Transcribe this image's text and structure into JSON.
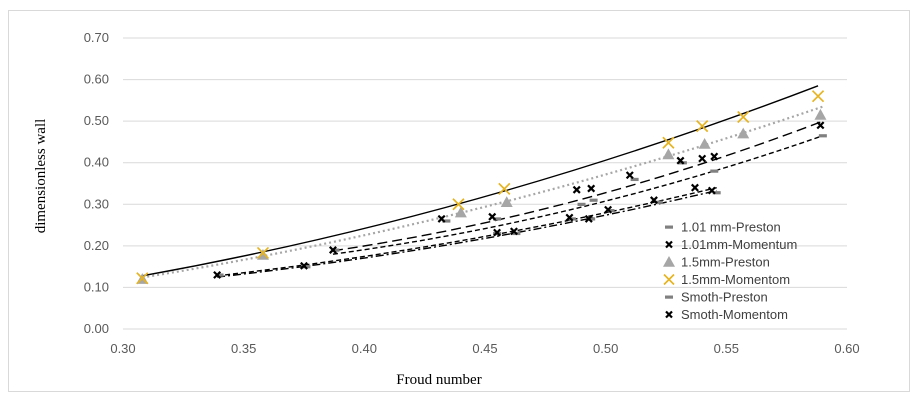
{
  "chart_data": {
    "type": "scatter",
    "title": "",
    "xlabel": "Froud number",
    "ylabel": "dimensionless wall",
    "xlim": [
      0.3,
      0.6
    ],
    "ylim": [
      0.0,
      0.7
    ],
    "x_ticks": [
      "0.30",
      "0.35",
      "0.40",
      "0.45",
      "0.50",
      "0.55",
      "0.60"
    ],
    "y_ticks": [
      "0.00",
      "0.10",
      "0.20",
      "0.30",
      "0.40",
      "0.50",
      "0.60",
      "0.70"
    ],
    "x_tick_values": [
      0.3,
      0.35,
      0.4,
      0.45,
      0.5,
      0.55,
      0.6
    ],
    "y_tick_values": [
      0.0,
      0.1,
      0.2,
      0.3,
      0.4,
      0.5,
      0.6,
      0.7
    ],
    "grid": "horizontal",
    "legend_position": "right",
    "series": [
      {
        "name": "1.01 mm-Preston",
        "marker": "dash",
        "color": "#808080",
        "points": [
          [
            0.34,
            0.13
          ],
          [
            0.388,
            0.19
          ],
          [
            0.434,
            0.26
          ],
          [
            0.455,
            0.265
          ],
          [
            0.49,
            0.3
          ],
          [
            0.495,
            0.31
          ],
          [
            0.512,
            0.36
          ],
          [
            0.532,
            0.4
          ],
          [
            0.545,
            0.38
          ],
          [
            0.59,
            0.465
          ]
        ]
      },
      {
        "name": "1.01mm-Momentum",
        "marker": "x",
        "color": "#000000",
        "points": [
          [
            0.387,
            0.19
          ],
          [
            0.432,
            0.265
          ],
          [
            0.453,
            0.27
          ],
          [
            0.488,
            0.335
          ],
          [
            0.494,
            0.338
          ],
          [
            0.51,
            0.37
          ],
          [
            0.531,
            0.405
          ],
          [
            0.54,
            0.41
          ],
          [
            0.545,
            0.415
          ],
          [
            0.589,
            0.49
          ]
        ]
      },
      {
        "name": "1.5mm-Preston",
        "marker": "triangle",
        "color": "#a6a6a6",
        "points": [
          [
            0.308,
            0.12
          ],
          [
            0.358,
            0.178
          ],
          [
            0.44,
            0.28
          ],
          [
            0.459,
            0.305
          ],
          [
            0.526,
            0.42
          ],
          [
            0.541,
            0.445
          ],
          [
            0.557,
            0.47
          ],
          [
            0.589,
            0.515
          ]
        ]
      },
      {
        "name": "1.5mm-Momentom",
        "marker": "x",
        "color": "#e6b422",
        "points": [
          [
            0.308,
            0.122
          ],
          [
            0.358,
            0.183
          ],
          [
            0.439,
            0.3
          ],
          [
            0.458,
            0.337
          ],
          [
            0.526,
            0.448
          ],
          [
            0.54,
            0.488
          ],
          [
            0.557,
            0.51
          ],
          [
            0.588,
            0.56
          ]
        ]
      },
      {
        "name": "Smoth-Preston",
        "marker": "dash",
        "color": "#808080",
        "points": [
          [
            0.376,
            0.15
          ],
          [
            0.455,
            0.23
          ],
          [
            0.463,
            0.23
          ],
          [
            0.486,
            0.265
          ],
          [
            0.494,
            0.265
          ],
          [
            0.502,
            0.285
          ],
          [
            0.522,
            0.305
          ],
          [
            0.546,
            0.328
          ]
        ]
      },
      {
        "name": "Smoth-Momentom",
        "marker": "x",
        "color": "#000000",
        "points": [
          [
            0.339,
            0.13
          ],
          [
            0.375,
            0.152
          ],
          [
            0.455,
            0.232
          ],
          [
            0.462,
            0.235
          ],
          [
            0.485,
            0.268
          ],
          [
            0.493,
            0.265
          ],
          [
            0.501,
            0.287
          ],
          [
            0.52,
            0.31
          ],
          [
            0.537,
            0.34
          ],
          [
            0.544,
            0.333
          ]
        ]
      }
    ],
    "trendlines": [
      {
        "style": "solid",
        "color": "#000000",
        "x": [
          0.308,
          0.588
        ],
        "y": [
          0.128,
          0.585
        ],
        "curve": [
          0.3,
          0.32
        ]
      },
      {
        "style": "dotted",
        "color": "#a6a6a6",
        "x": [
          0.308,
          0.59
        ],
        "y": [
          0.124,
          0.535
        ],
        "curve": [
          0.3,
          0.32
        ]
      },
      {
        "style": "longdash",
        "color": "#000000",
        "x": [
          0.387,
          0.59
        ],
        "y": [
          0.188,
          0.5
        ],
        "curve": [
          0.36,
          0.28
        ]
      },
      {
        "style": "shortdash",
        "color": "#000000",
        "x": [
          0.387,
          0.59
        ],
        "y": [
          0.18,
          0.465
        ],
        "curve": [
          0.36,
          0.28
        ]
      },
      {
        "style": "dashdot",
        "color": "#000000",
        "x": [
          0.339,
          0.546
        ],
        "y": [
          0.125,
          0.333
        ],
        "curve": [
          0.36,
          0.32
        ]
      },
      {
        "style": "shortdash",
        "color": "#000000",
        "x": [
          0.339,
          0.546
        ],
        "y": [
          0.128,
          0.34
        ],
        "curve": [
          0.36,
          0.32
        ]
      }
    ]
  }
}
